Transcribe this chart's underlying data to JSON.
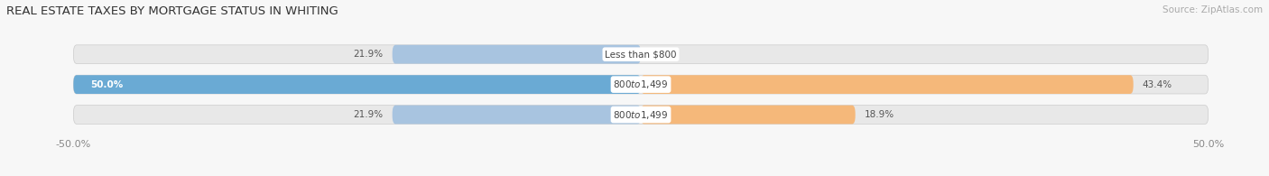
{
  "title": "REAL ESTATE TAXES BY MORTGAGE STATUS IN WHITING",
  "source": "Source: ZipAtlas.com",
  "rows": [
    {
      "label": "Less than $800",
      "without_mortgage": 21.9,
      "with_mortgage": 0.0
    },
    {
      "label": "$800 to $1,499",
      "without_mortgage": 50.0,
      "with_mortgage": 43.4
    },
    {
      "label": "$800 to $1,499",
      "without_mortgage": 21.9,
      "with_mortgage": 18.9
    }
  ],
  "max_val": 50.0,
  "color_without": "#a8c4e0",
  "color_with": "#f5b87a",
  "color_without_full": "#6aaad4",
  "color_with_full": "#f0a040",
  "bar_height": 0.62,
  "bg_bar": "#e8e8e8",
  "bg_fig": "#f7f7f7",
  "title_fontsize": 9.5,
  "source_fontsize": 7.5,
  "label_fontsize": 7.5,
  "pct_fontsize": 7.5,
  "tick_fontsize": 8,
  "legend_fontsize": 8
}
